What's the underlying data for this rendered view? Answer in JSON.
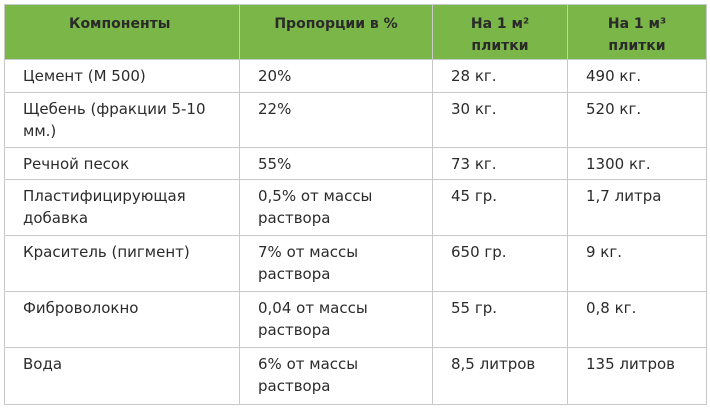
{
  "table": {
    "headers": [
      "Компоненты",
      "Пропорции в %",
      "На 1 м² плитки",
      "На 1 м³ плитки"
    ],
    "rows": [
      [
        "Цемент (М 500)",
        "20%",
        "28 кг.",
        "490 кг."
      ],
      [
        "Щебень (фракции 5-10 мм.)",
        "22%",
        "30 кг.",
        "520 кг."
      ],
      [
        "Речной песок",
        "55%",
        "73 кг.",
        "1300 кг."
      ],
      [
        "Пластифицирующая добавка",
        "0,5% от массы раствора",
        "45 гр.",
        "1,7 литра"
      ],
      [
        "Краситель (пигмент)",
        "7% от массы раствора",
        "650 гр.",
        "9 кг."
      ],
      [
        "Фиброволокно",
        "0,04 от массы раствора",
        "55 гр.",
        "0,8 кг."
      ],
      [
        "Вода",
        "6% от массы раствора",
        "8,5 литров",
        "135 литров"
      ]
    ]
  },
  "colors": {
    "header_bg": "#7ab648",
    "border": "#c9c9c9",
    "text": "#2b2b2b"
  }
}
